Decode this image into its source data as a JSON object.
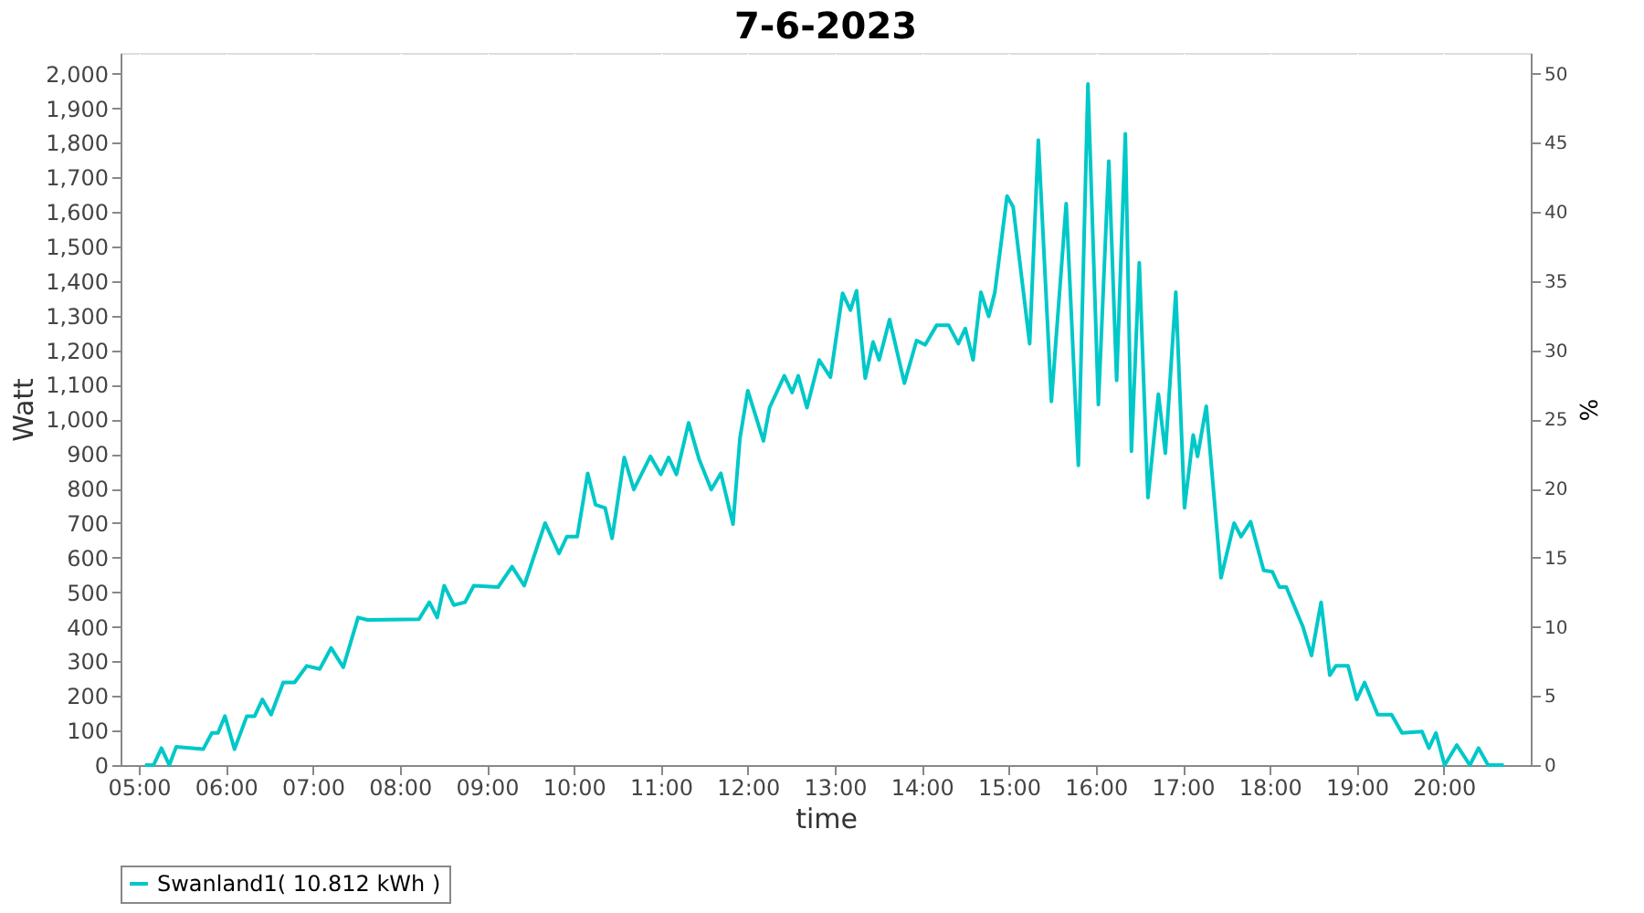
{
  "chart_data": {
    "type": "line",
    "title": "7-6-2023",
    "xlabel": "time",
    "ylabel": "Watt",
    "y2label": "%",
    "x": [
      5.07,
      5.17,
      5.26,
      5.35,
      5.43,
      5.74,
      5.84,
      5.91,
      5.99,
      6.1,
      6.24,
      6.33,
      6.42,
      6.52,
      6.66,
      6.79,
      6.93,
      7.08,
      7.21,
      7.35,
      7.52,
      7.63,
      8.22,
      8.34,
      8.43,
      8.51,
      8.62,
      8.75,
      8.85,
      9.13,
      9.29,
      9.43,
      9.67,
      9.83,
      9.92,
      10.04,
      10.16,
      10.25,
      10.36,
      10.44,
      10.58,
      10.69,
      10.88,
      11.0,
      11.09,
      11.18,
      11.32,
      11.44,
      11.58,
      11.69,
      11.83,
      11.91,
      12.0,
      12.18,
      12.25,
      12.42,
      12.51,
      12.58,
      12.68,
      12.82,
      12.95,
      13.09,
      13.18,
      13.25,
      13.35,
      13.44,
      13.51,
      13.63,
      13.8,
      13.94,
      14.04,
      14.17,
      14.31,
      14.42,
      14.5,
      14.59,
      14.68,
      14.77,
      14.84,
      14.98,
      15.05,
      15.24,
      15.34,
      15.49,
      15.66,
      15.8,
      15.91,
      16.03,
      16.15,
      16.24,
      16.34,
      16.41,
      16.5,
      16.6,
      16.72,
      16.8,
      16.92,
      17.02,
      17.12,
      17.17,
      17.27,
      17.44,
      17.59,
      17.67,
      17.78,
      17.93,
      18.03,
      18.11,
      18.19,
      18.38,
      18.48,
      18.59,
      18.69,
      18.76,
      18.9,
      19.0,
      19.09,
      19.24,
      19.4,
      19.52,
      19.75,
      19.83,
      19.91,
      20.01,
      20.15,
      20.3,
      20.4,
      20.51,
      20.69
    ],
    "series": [
      {
        "name": "Swanland1( 10.812 kWh )",
        "color": "#00c8c8",
        "values": [
          0,
          0,
          49,
          0,
          53,
          46,
          93,
          93,
          142,
          46,
          141,
          141,
          190,
          146,
          239,
          239,
          287,
          278,
          339,
          283,
          427,
          420,
          422,
          471,
          427,
          519,
          463,
          471,
          519,
          515,
          574,
          519,
          700,
          612,
          661,
          661,
          844,
          753,
          744,
          656,
          890,
          797,
          893,
          841,
          890,
          841,
          990,
          885,
          797,
          844,
          697,
          946,
          1083,
          938,
          1034,
          1126,
          1078,
          1126,
          1034,
          1172,
          1122,
          1365,
          1316,
          1372,
          1119,
          1224,
          1172,
          1289,
          1105,
          1228,
          1216,
          1272,
          1272,
          1219,
          1263,
          1172,
          1368,
          1298,
          1368,
          1646,
          1615,
          1219,
          1808,
          1052,
          1624,
          867,
          1970,
          1043,
          1747,
          1113,
          1826,
          908,
          1453,
          774,
          1073,
          902,
          1368,
          744,
          955,
          893,
          1038,
          542,
          700,
          661,
          704,
          563,
          559,
          515,
          515,
          401,
          317,
          471,
          260,
          287,
          287,
          190,
          239,
          146,
          146,
          93,
          97,
          49,
          93,
          0,
          58,
          0,
          49,
          0,
          0
        ]
      }
    ],
    "xlim": [
      4.79,
      21.0
    ],
    "xticks": [
      {
        "value": 5,
        "label": "05:00"
      },
      {
        "value": 6,
        "label": "06:00"
      },
      {
        "value": 7,
        "label": "07:00"
      },
      {
        "value": 8,
        "label": "08:00"
      },
      {
        "value": 9,
        "label": "09:00"
      },
      {
        "value": 10,
        "label": "10:00"
      },
      {
        "value": 11,
        "label": "11:00"
      },
      {
        "value": 12,
        "label": "12:00"
      },
      {
        "value": 13,
        "label": "13:00"
      },
      {
        "value": 14,
        "label": "14:00"
      },
      {
        "value": 15,
        "label": "15:00"
      },
      {
        "value": 16,
        "label": "16:00"
      },
      {
        "value": 17,
        "label": "17:00"
      },
      {
        "value": 18,
        "label": "18:00"
      },
      {
        "value": 19,
        "label": "19:00"
      },
      {
        "value": 20,
        "label": "20:00"
      }
    ],
    "ylim": [
      0,
      2060
    ],
    "yticks": [
      {
        "value": 0,
        "label": "0"
      },
      {
        "value": 100,
        "label": "100"
      },
      {
        "value": 200,
        "label": "200"
      },
      {
        "value": 300,
        "label": "300"
      },
      {
        "value": 400,
        "label": "400"
      },
      {
        "value": 500,
        "label": "500"
      },
      {
        "value": 600,
        "label": "600"
      },
      {
        "value": 700,
        "label": "700"
      },
      {
        "value": 800,
        "label": "800"
      },
      {
        "value": 900,
        "label": "900"
      },
      {
        "value": 1000,
        "label": "1,000"
      },
      {
        "value": 1100,
        "label": "1,100"
      },
      {
        "value": 1200,
        "label": "1,200"
      },
      {
        "value": 1300,
        "label": "1,300"
      },
      {
        "value": 1400,
        "label": "1,400"
      },
      {
        "value": 1500,
        "label": "1,500"
      },
      {
        "value": 1600,
        "label": "1,600"
      },
      {
        "value": 1700,
        "label": "1,700"
      },
      {
        "value": 1800,
        "label": "1,800"
      },
      {
        "value": 1900,
        "label": "1,900"
      },
      {
        "value": 2000,
        "label": "2,000"
      }
    ],
    "y2lim": [
      0,
      51.5
    ],
    "y2ticks": [
      0,
      5,
      10,
      15,
      20,
      25,
      30,
      35,
      40,
      45,
      50
    ],
    "grid": true,
    "legend": "bottom"
  }
}
